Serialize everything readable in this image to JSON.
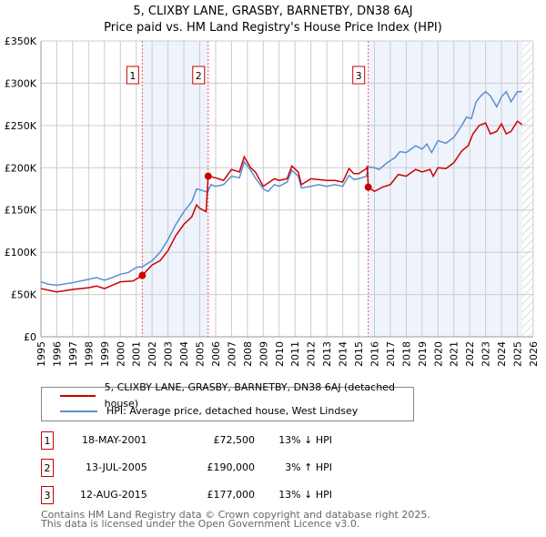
{
  "chart_data": {
    "type": "line",
    "title": "5, CLIXBY LANE, GRASBY, BARNETBY, DN38 6AJ",
    "subtitle": "Price paid vs. HM Land Registry's House Price Index (HPI)",
    "xlim": [
      1995,
      2026
    ],
    "ylim": [
      0,
      350000
    ],
    "x_ticks": [
      "1995",
      "1996",
      "1997",
      "1998",
      "1999",
      "2000",
      "2001",
      "2002",
      "2003",
      "2004",
      "2005",
      "2006",
      "2007",
      "2008",
      "2009",
      "2010",
      "2011",
      "2012",
      "2013",
      "2014",
      "2015",
      "2016",
      "2017",
      "2018",
      "2019",
      "2020",
      "2021",
      "2022",
      "2023",
      "2024",
      "2025",
      "2026"
    ],
    "y_ticks": [
      {
        "v": 0,
        "l": "£0"
      },
      {
        "v": 50000,
        "l": "£50K"
      },
      {
        "v": 100000,
        "l": "£100K"
      },
      {
        "v": 150000,
        "l": "£150K"
      },
      {
        "v": 200000,
        "l": "£200K"
      },
      {
        "v": 250000,
        "l": "£250K"
      },
      {
        "v": 300000,
        "l": "£300K"
      },
      {
        "v": 350000,
        "l": "£350K"
      }
    ],
    "grid": true,
    "shaded_ranges": [
      [
        2001.38,
        2005.53
      ],
      [
        2015.61,
        2025.3
      ]
    ],
    "forecast_from": 2025.3,
    "series": [
      {
        "name": "5, CLIXBY LANE, GRASBY, BARNETBY, DN38 6AJ (detached house)",
        "color": "#cc0000",
        "x": [
          1995,
          1996,
          1997,
          1998,
          1998.5,
          1999,
          2000,
          2000.8,
          2001.38,
          2002,
          2002.5,
          2003,
          2003.5,
          2004,
          2004.5,
          2004.8,
          2005,
          2005.4,
          2005.53,
          2006,
          2006.5,
          2007,
          2007.5,
          2007.8,
          2008.2,
          2008.5,
          2009,
          2009.7,
          2010,
          2010.5,
          2010.8,
          2011.2,
          2011.4,
          2012,
          2013,
          2013.5,
          2014,
          2014.4,
          2014.7,
          2015,
          2015.5,
          2015.55,
          2015.61,
          2016,
          2016.5,
          2017,
          2017.5,
          2018,
          2018.6,
          2019,
          2019.5,
          2019.7,
          2020,
          2020.5,
          2021,
          2021.5,
          2021.9,
          2022.2,
          2022.6,
          2023,
          2023.3,
          2023.7,
          2024,
          2024.3,
          2024.6,
          2025,
          2025.3
        ],
        "y": [
          57,
          53,
          56,
          58,
          60,
          57,
          65,
          66,
          72.5,
          85,
          90,
          102,
          120,
          133,
          142,
          156,
          152,
          148,
          190,
          188,
          185,
          198,
          195,
          213,
          200,
          195,
          178,
          187,
          185,
          187,
          202,
          195,
          180,
          187,
          185,
          185,
          183,
          199,
          193,
          193,
          199,
          202,
          177,
          172,
          177,
          180,
          192,
          190,
          198,
          195,
          198,
          190,
          200,
          199,
          206,
          220,
          226,
          240,
          250,
          253,
          240,
          243,
          252,
          240,
          243,
          255,
          251
        ]
      },
      {
        "name": "HPI: Average price, detached house, West Lindsey",
        "color": "#5b8fd0",
        "x": [
          1995,
          1995.5,
          1996,
          1997,
          1998,
          1998.5,
          1999,
          1999.5,
          2000,
          2000.5,
          2001,
          2001.4,
          2002,
          2002.5,
          2003,
          2003.5,
          2004,
          2004.5,
          2004.8,
          2005,
          2005.5,
          2005.7,
          2006,
          2006.5,
          2007,
          2007.5,
          2007.8,
          2008.2,
          2008.5,
          2009,
          2009.3,
          2009.7,
          2010,
          2010.5,
          2010.8,
          2011.2,
          2011.4,
          2012,
          2012.5,
          2013,
          2013.5,
          2014,
          2014.4,
          2014.7,
          2015,
          2015.5,
          2015.6,
          2016,
          2016.3,
          2016.8,
          2017.3,
          2017.6,
          2018,
          2018.6,
          2019,
          2019.3,
          2019.6,
          2020,
          2020.5,
          2021,
          2021.5,
          2021.8,
          2022.1,
          2022.4,
          2022.7,
          2023,
          2023.3,
          2023.7,
          2024,
          2024.3,
          2024.6,
          2025,
          2025.3
        ],
        "y": [
          65,
          62,
          61,
          64,
          68,
          70,
          67,
          70,
          74,
          76,
          82,
          83,
          90,
          100,
          115,
          133,
          148,
          160,
          175,
          174,
          171,
          180,
          178,
          180,
          190,
          188,
          207,
          197,
          188,
          175,
          172,
          180,
          178,
          183,
          197,
          190,
          176,
          178,
          180,
          178,
          180,
          178,
          191,
          186,
          187,
          190,
          201,
          200,
          198,
          206,
          212,
          219,
          218,
          226,
          222,
          228,
          218,
          232,
          229,
          236,
          250,
          260,
          258,
          278,
          285,
          290,
          285,
          272,
          284,
          290,
          278,
          290,
          290
        ]
      }
    ],
    "sales": [
      {
        "label": "1",
        "x": 2001.38,
        "y": 72500,
        "date": "18-MAY-2001",
        "price": "£72,500",
        "delta": "13% ↓ HPI"
      },
      {
        "label": "2",
        "x": 2005.53,
        "y": 190000,
        "date": "13-JUL-2005",
        "price": "£190,000",
        "delta": "3% ↑ HPI"
      },
      {
        "label": "3",
        "x": 2015.61,
        "y": 177000,
        "date": "12-AUG-2015",
        "price": "£177,000",
        "delta": "13% ↓ HPI"
      }
    ]
  },
  "footer": {
    "line1": "Contains HM Land Registry data © Crown copyright and database right 2025.",
    "line2": "This data is licensed under the Open Government Licence v3.0."
  }
}
